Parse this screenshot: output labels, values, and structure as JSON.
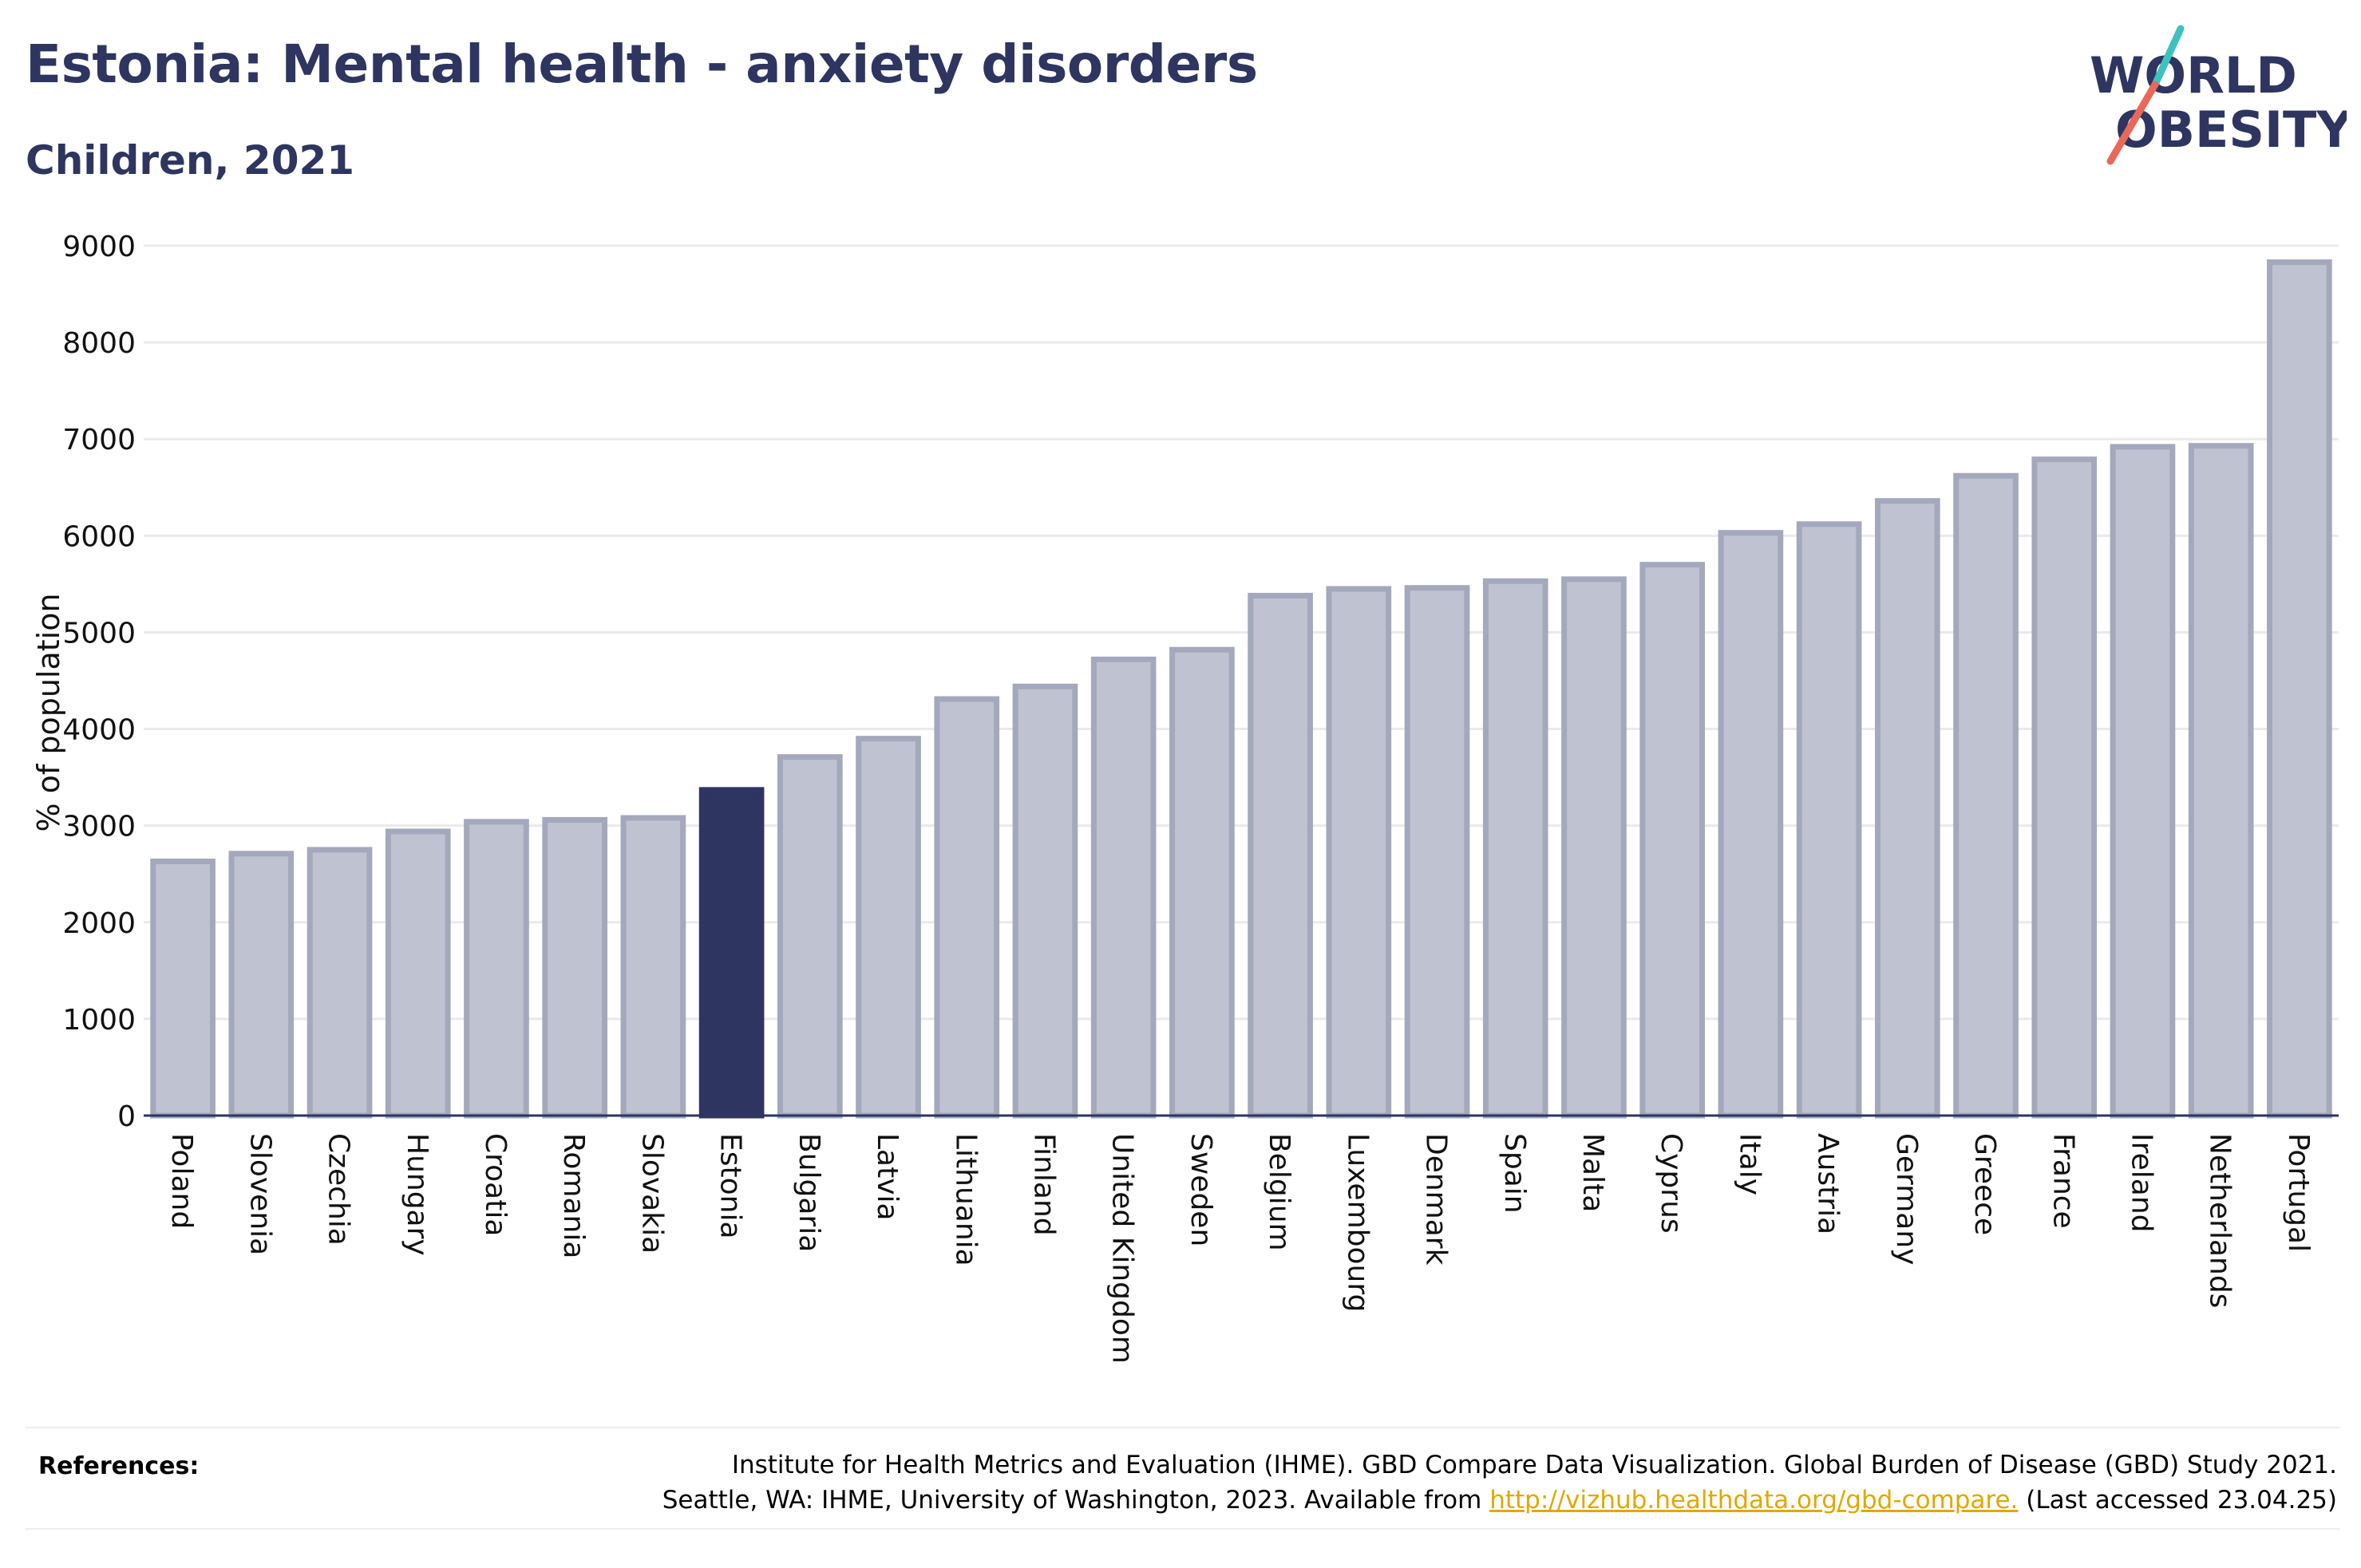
{
  "header": {
    "title": "Estonia: Mental health - anxiety disorders",
    "subtitle": "Children, 2021"
  },
  "logo": {
    "line1": "WORLD",
    "line2": "OBESITY",
    "colors": {
      "text": "#2d3560",
      "slash_teal": "#3fc1c0",
      "slash_red": "#e8685a"
    }
  },
  "chart_data": {
    "type": "bar",
    "title": "",
    "xlabel": "",
    "ylabel": "% of population",
    "ylim": [
      0,
      9000
    ],
    "yticks": [
      0,
      1000,
      2000,
      3000,
      4000,
      5000,
      6000,
      7000,
      8000,
      9000
    ],
    "grid": true,
    "categories": [
      "Poland",
      "Slovenia",
      "Czechia",
      "Hungary",
      "Croatia",
      "Romania",
      "Slovakia",
      "Estonia",
      "Bulgaria",
      "Latvia",
      "Lithuania",
      "Finland",
      "United Kingdom",
      "Sweden",
      "Belgium",
      "Luxembourg",
      "Denmark",
      "Spain",
      "Malta",
      "Cyprus",
      "Italy",
      "Austria",
      "Germany",
      "Greece",
      "France",
      "Ireland",
      "Netherlands",
      "Portugal"
    ],
    "values": [
      2630,
      2710,
      2750,
      2940,
      3040,
      3060,
      3080,
      3370,
      3710,
      3900,
      4310,
      4440,
      4720,
      4820,
      5380,
      5450,
      5460,
      5530,
      5550,
      5700,
      6030,
      6120,
      6360,
      6620,
      6790,
      6920,
      6930,
      8830
    ],
    "highlight": "Estonia",
    "colors": {
      "bar": "#bfc2d0",
      "bar_border": "#a3a8bc",
      "highlight": "#2d3560",
      "axis": "#2d3560",
      "grid": "#eaeaea"
    }
  },
  "references": {
    "label": "References:",
    "line1": "Institute for Health Metrics and Evaluation (IHME). GBD Compare Data Visualization. Global Burden of Disease (GBD) Study 2021.",
    "line2_before": "Seattle, WA: IHME, University of Washington, 2023. Available from ",
    "link": "http://vizhub.healthdata.org/gbd-compare.",
    "line2_after": " (Last accessed 23.04.25)"
  }
}
